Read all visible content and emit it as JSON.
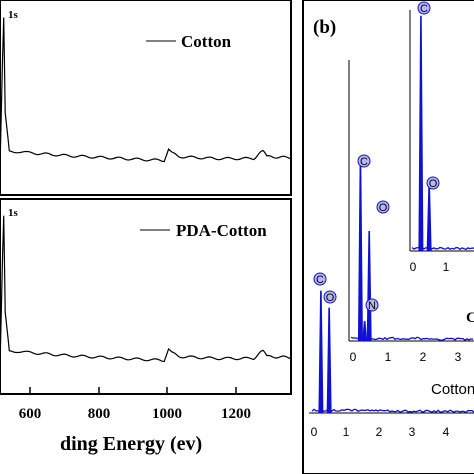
{
  "chart_data": [
    {
      "type": "line",
      "panel": "XPS survey (top)",
      "xlabel": "ding Energy (ev)",
      "xlim": [
        520,
        1300
      ],
      "xticks": [
        600,
        800,
        1000,
        1200
      ],
      "series": [
        {
          "name": "Cotton",
          "peak_label": "1s"
        }
      ],
      "points": [
        [
          520,
          2
        ],
        [
          527,
          120
        ],
        [
          530,
          160
        ],
        [
          534,
          60
        ],
        [
          545,
          20
        ],
        [
          600,
          18
        ],
        [
          700,
          15
        ],
        [
          800,
          13
        ],
        [
          900,
          11
        ],
        [
          960,
          10
        ],
        [
          972,
          22
        ],
        [
          980,
          18
        ],
        [
          1000,
          14
        ],
        [
          1100,
          12
        ],
        [
          1200,
          12
        ],
        [
          1225,
          20
        ],
        [
          1235,
          14
        ],
        [
          1300,
          13
        ]
      ]
    },
    {
      "type": "line",
      "panel": "XPS survey (bottom)",
      "xlabel": "ding Energy (ev)",
      "xlim": [
        520,
        1300
      ],
      "xticks": [
        600,
        800,
        1000,
        1200
      ],
      "series": [
        {
          "name": "PDA-Cotton",
          "peak_label": "1s"
        }
      ],
      "points": [
        [
          520,
          2
        ],
        [
          527,
          120
        ],
        [
          530,
          160
        ],
        [
          534,
          60
        ],
        [
          545,
          20
        ],
        [
          600,
          18
        ],
        [
          700,
          15
        ],
        [
          800,
          13
        ],
        [
          900,
          11
        ],
        [
          960,
          10
        ],
        [
          972,
          22
        ],
        [
          980,
          18
        ],
        [
          1000,
          14
        ],
        [
          1100,
          12
        ],
        [
          1200,
          12
        ],
        [
          1225,
          20
        ],
        [
          1235,
          14
        ],
        [
          1300,
          13
        ]
      ]
    },
    {
      "type": "bar",
      "panel": "EDS (b)",
      "panel_label": "(b)",
      "color": "#1010d0",
      "spectra": [
        {
          "name": "Cotton",
          "xticks": [
            "0",
            "1",
            "2",
            "3",
            "4"
          ],
          "peaks": [
            {
              "label": "C",
              "x": 0.27,
              "value": 0.72
            },
            {
              "label": "O",
              "x": 0.52,
              "value": 0.62
            },
            {
              "label": "N",
              "x": 0.39,
              "value": 0.0
            }
          ]
        },
        {
          "name": "",
          "xticks": [
            "0",
            "1",
            "2",
            "3"
          ],
          "peaks": [
            {
              "label": "C",
              "x": 0.27,
              "value": 0.92
            },
            {
              "label": "N",
              "x": 0.39,
              "value": 0.1
            },
            {
              "label": "O",
              "x": 0.52,
              "value": 0.55
            }
          ]
        },
        {
          "name": "",
          "xticks": [
            "0",
            "1"
          ],
          "peaks": [
            {
              "label": "C",
              "x": 0.27,
              "value": 0.98
            },
            {
              "label": "O",
              "x": 0.52,
              "value": 0.28
            }
          ]
        }
      ]
    }
  ],
  "text": {
    "legend_top": "Cotton",
    "legend_bottom": "PDA-Cotton",
    "peak_top": "1s",
    "peak_bottom": "1s",
    "xlabel": "ding Energy (ev)",
    "xtick_600": "600",
    "xtick_800": "800",
    "xtick_1000": "1000",
    "xtick_1200": "1200",
    "panel_b": "(b)",
    "eds_cotton": "Cotton",
    "cut_label": "C",
    "c": "C",
    "o": "O",
    "n": "N",
    "t0": "0",
    "t1": "1",
    "t2": "2",
    "t3": "3",
    "t4": "4"
  }
}
